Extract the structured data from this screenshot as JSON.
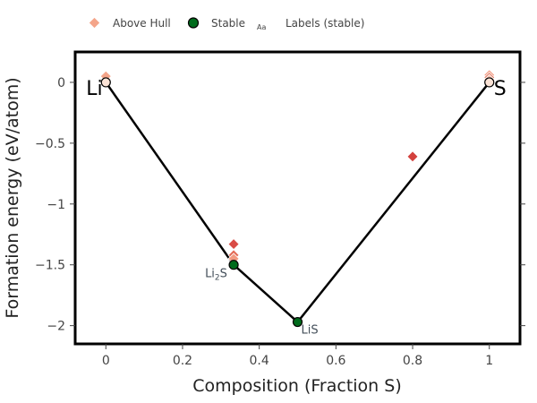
{
  "chart_data": {
    "type": "scatter",
    "title": "",
    "xlabel": "Composition (Fraction S)",
    "ylabel": "Formation energy (eV/atom)",
    "xlim": [
      -0.08,
      1.08
    ],
    "ylim": [
      -2.15,
      0.25
    ],
    "x_ticks": [
      0,
      0.2,
      0.4,
      0.6,
      0.8,
      1
    ],
    "x_tick_labels": [
      "0",
      "0.2",
      "0.4",
      "0.6",
      "0.8",
      "1"
    ],
    "y_ticks": [
      0,
      -0.5,
      -1,
      -1.5,
      -2
    ],
    "y_tick_labels": [
      "0",
      "−0.5",
      "−1",
      "−1.5",
      "−2"
    ],
    "grid": false,
    "legend_position": "top-left",
    "legend": {
      "above_hull": "Above Hull",
      "stable": "Stable",
      "labels_icon": "Aa",
      "labels": "Labels (stable)"
    },
    "hull_line": {
      "x": [
        0,
        0.3333,
        0.5,
        1
      ],
      "y": [
        0,
        -1.5,
        -1.97,
        0
      ]
    },
    "above_hull": [
      {
        "x": 0,
        "y": 0.05,
        "color": "#f4a58a"
      },
      {
        "x": 0.3333,
        "y": -1.33,
        "color": "#d94b45"
      },
      {
        "x": 0.3333,
        "y": -1.42,
        "color": "#e36a55"
      },
      {
        "x": 0.3333,
        "y": -1.45,
        "color": "#f29a80"
      },
      {
        "x": 0.8,
        "y": -0.61,
        "color": "#d3413d"
      },
      {
        "x": 1,
        "y": 0.06,
        "color": "#f29a80"
      },
      {
        "x": 1,
        "y": 0.04,
        "color": "#e47a62"
      },
      {
        "x": 1,
        "y": 0.02,
        "color": "#f7c3b1"
      }
    ],
    "stable": [
      {
        "x": 0,
        "y": 0,
        "label_parts": [
          "Li",
          ""
        ],
        "marker_color": "#fbe3d6"
      },
      {
        "x": 0.3333,
        "y": -1.5,
        "label_parts": [
          "Li",
          "2",
          "S"
        ],
        "marker_color": "#006b1c"
      },
      {
        "x": 0.5,
        "y": -1.97,
        "label_parts": [
          "LiS"
        ],
        "marker_color": "#006b1c"
      },
      {
        "x": 1,
        "y": 0,
        "label_parts": [
          "S"
        ],
        "marker_color": "#fbe3d6"
      }
    ],
    "colors": {
      "hull_line": "#000000",
      "stable_fill": "#006b1c",
      "above_hull_legend": "#f4a58a",
      "frame": "#000000"
    }
  }
}
